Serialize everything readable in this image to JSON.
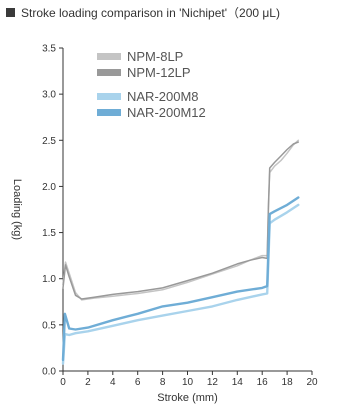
{
  "chart_data": {
    "type": "line",
    "title": "Stroke loading comparison in 'Nichipet'（200 μL)",
    "xlabel": "Stroke (mm)",
    "ylabel": "Loading (kg)",
    "xlim": [
      0,
      20
    ],
    "ylim": [
      0,
      3.5
    ],
    "xticks": [
      "0",
      "2",
      "4",
      "6",
      "8",
      "10",
      "12",
      "14",
      "16",
      "18",
      "20"
    ],
    "yticks": [
      "0.0",
      "0.5",
      "1.0",
      "1.5",
      "2.0",
      "2.5",
      "3.0",
      "3.5"
    ],
    "grid": false,
    "legend_position": "top-left",
    "series": [
      {
        "name": "NPM-8LP",
        "color": "#c4c4c4",
        "x": [
          0,
          0.2,
          0.5,
          1.0,
          1.5,
          2.5,
          4.0,
          6.0,
          8.0,
          10.0,
          12.0,
          14.0,
          15.0,
          16.0,
          16.4,
          16.5,
          16.6,
          17.0,
          17.5,
          18.0,
          18.5,
          18.9
        ],
        "y": [
          0.95,
          1.18,
          1.06,
          0.85,
          0.77,
          0.79,
          0.81,
          0.84,
          0.88,
          0.96,
          1.05,
          1.14,
          1.2,
          1.25,
          1.25,
          1.8,
          2.15,
          2.22,
          2.28,
          2.36,
          2.45,
          2.5
        ]
      },
      {
        "name": "NPM-12LP",
        "color": "#999999",
        "x": [
          0,
          0.2,
          0.5,
          1.0,
          1.5,
          2.5,
          4.0,
          6.0,
          8.0,
          10.0,
          12.0,
          14.0,
          15.0,
          16.0,
          16.4,
          16.5,
          16.6,
          17.0,
          17.5,
          18.0,
          18.5,
          18.9
        ],
        "y": [
          0.9,
          1.15,
          1.02,
          0.82,
          0.78,
          0.8,
          0.83,
          0.86,
          0.9,
          0.98,
          1.06,
          1.16,
          1.2,
          1.23,
          1.22,
          1.75,
          2.2,
          2.26,
          2.33,
          2.4,
          2.46,
          2.48
        ]
      },
      {
        "name": "NAR-200M8",
        "color": "#a9d3ec",
        "x": [
          0,
          0.15,
          0.5,
          1.0,
          2.0,
          4.0,
          6.0,
          8.0,
          10.0,
          12.0,
          14.0,
          16.0,
          16.4,
          16.5,
          16.6,
          17.0,
          18.0,
          18.9
        ],
        "y": [
          0.08,
          0.4,
          0.39,
          0.41,
          0.43,
          0.49,
          0.55,
          0.6,
          0.65,
          0.7,
          0.77,
          0.83,
          0.84,
          1.2,
          1.6,
          1.64,
          1.72,
          1.8
        ]
      },
      {
        "name": "NAR-200M12",
        "color": "#6fadd6",
        "x": [
          0,
          0.15,
          0.5,
          1.0,
          2.0,
          4.0,
          6.0,
          8.0,
          10.0,
          12.0,
          14.0,
          16.0,
          16.4,
          16.5,
          16.6,
          17.0,
          18.0,
          18.9
        ],
        "y": [
          0.12,
          0.62,
          0.46,
          0.45,
          0.47,
          0.55,
          0.62,
          0.7,
          0.74,
          0.8,
          0.86,
          0.9,
          0.92,
          1.3,
          1.7,
          1.73,
          1.8,
          1.88
        ]
      }
    ]
  }
}
